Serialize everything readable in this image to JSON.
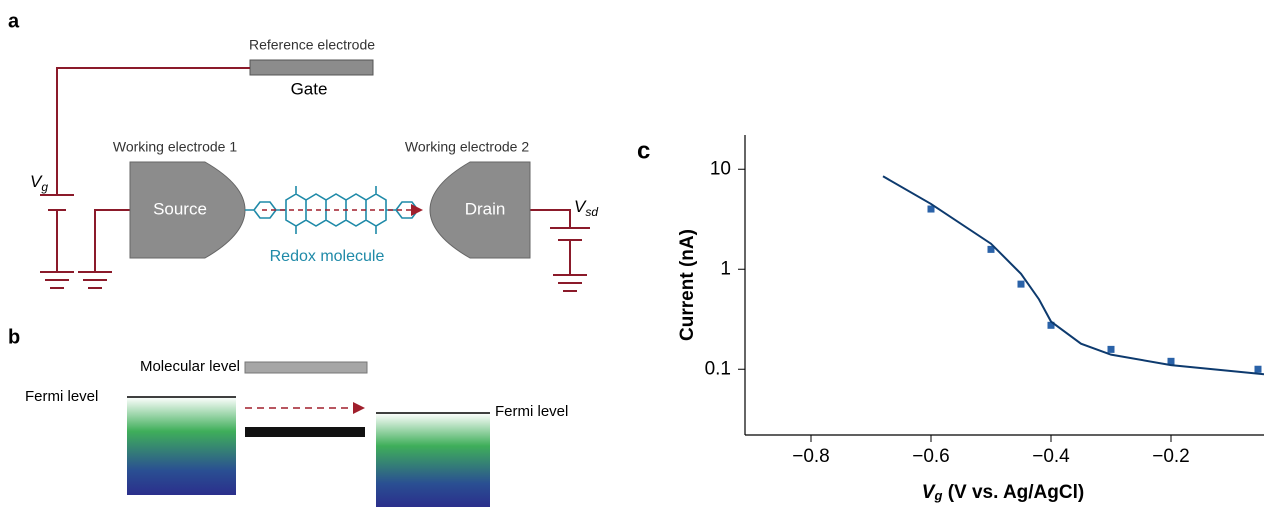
{
  "panel_a": {
    "label": "a",
    "reference_electrode": "Reference electrode",
    "gate": "Gate",
    "working_electrode_1": "Working electrode 1",
    "working_electrode_2": "Working electrode 2",
    "source": "Source",
    "drain": "Drain",
    "molecule": "Redox molecule",
    "vg": {
      "symbol": "V",
      "subscript": "g"
    },
    "vsd": {
      "symbol": "V",
      "subscript": "sd"
    }
  },
  "panel_b": {
    "label": "b",
    "molecular_level": "Molecular level",
    "fermi_left": "Fermi level",
    "fermi_right": "Fermi level"
  },
  "chart_data": {
    "type": "line",
    "panel_label": "c",
    "xlabel": {
      "symbol": "V",
      "subscript": "g",
      "text": "(V vs. Ag/AgCl)"
    },
    "ylabel": "Current (nA)",
    "log_y": true,
    "xlim": [
      -0.91,
      -0.045
    ],
    "ylim": [
      0.022,
      22
    ],
    "xticks": [
      {
        "value": -0.8,
        "label": "−0.8"
      },
      {
        "value": -0.6,
        "label": "−0.6"
      },
      {
        "value": -0.4,
        "label": "−0.4"
      },
      {
        "value": -0.2,
        "label": "−0.2"
      }
    ],
    "yticks": [
      10,
      1,
      0.1
    ],
    "series": [
      {
        "style": "markers",
        "color": "#2a62a8",
        "x": [
          -0.6,
          -0.5,
          -0.45,
          -0.4,
          -0.3,
          -0.2,
          -0.055
        ],
        "values": [
          4.0,
          1.58,
          0.71,
          0.275,
          0.158,
          0.12,
          0.1
        ]
      },
      {
        "style": "line",
        "color": "#0d3a6e",
        "x": [
          -0.68,
          -0.6,
          -0.5,
          -0.45,
          -0.42,
          -0.4,
          -0.35,
          -0.3,
          -0.2,
          -0.045
        ],
        "values": [
          8.5,
          4.5,
          1.8,
          0.9,
          0.5,
          0.3,
          0.18,
          0.14,
          0.11,
          0.089
        ]
      }
    ]
  }
}
